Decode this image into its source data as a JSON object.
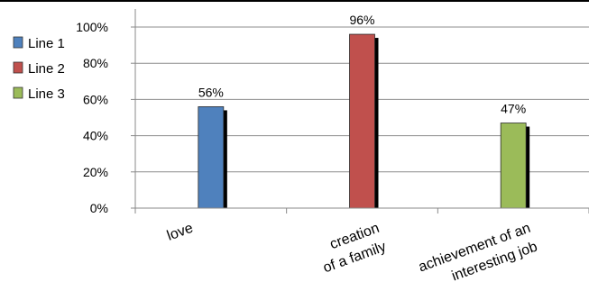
{
  "chart_data": {
    "type": "bar",
    "categories": [
      "love",
      "creation of a family",
      "achievement of an interesting job"
    ],
    "category_label_lines": [
      [
        "love"
      ],
      [
        "creation",
        "of a family"
      ],
      [
        "achievement of an",
        "interesting job"
      ]
    ],
    "series": [
      {
        "name": "Line 1",
        "color": "#4f81bd",
        "values": [
          56,
          null,
          null
        ]
      },
      {
        "name": "Line 2",
        "color": "#c0504d",
        "values": [
          null,
          96,
          null
        ]
      },
      {
        "name": "Line 3",
        "color": "#9bbb59",
        "values": [
          null,
          null,
          47
        ]
      }
    ],
    "data_labels": [
      "56%",
      "96%",
      "47%"
    ],
    "y_ticks": [
      "0%",
      "20%",
      "40%",
      "60%",
      "80%",
      "100%"
    ],
    "ylim": [
      0,
      100
    ],
    "grid": true,
    "legend_position": "left"
  }
}
